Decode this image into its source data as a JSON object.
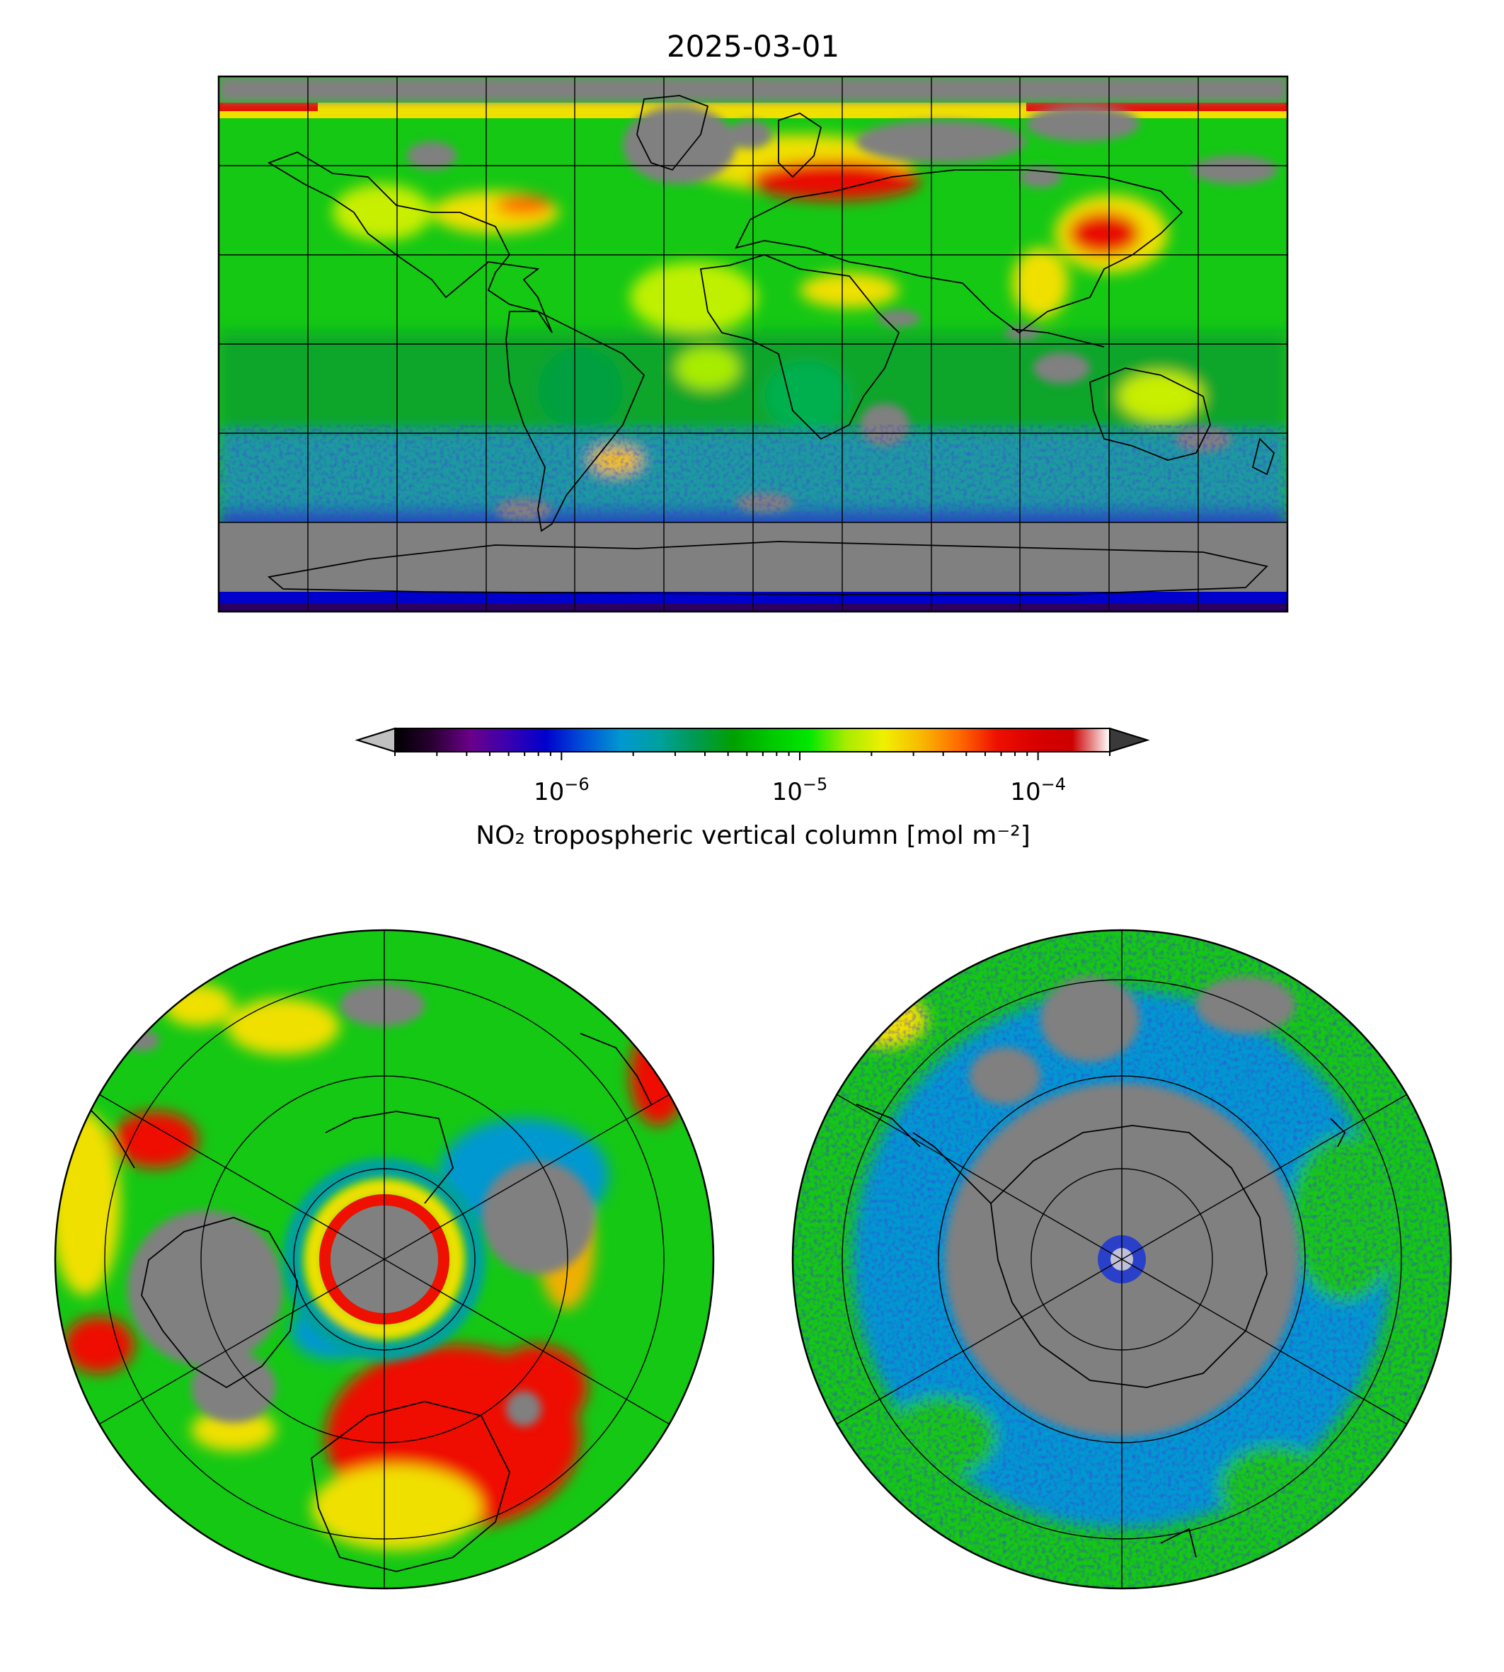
{
  "figure": {
    "title": "2025-03-01"
  },
  "colorbar": {
    "label": "NO₂ tropospheric vertical column [mol m⁻²]",
    "scale": "log",
    "range": [
      2e-07,
      0.0002
    ],
    "extend": "both",
    "ticks": [
      {
        "value": 1e-06,
        "base": "10",
        "exponent": "−6"
      },
      {
        "value": 1e-05,
        "base": "10",
        "exponent": "−5"
      },
      {
        "value": 0.0001,
        "base": "10",
        "exponent": "−4"
      }
    ],
    "colors": {
      "under": "#c0c0c0",
      "over": "#3a3a3a",
      "stops": [
        "#000000",
        "#2a0033",
        "#6a0088",
        "#3a00b0",
        "#0000cc",
        "#0050d8",
        "#0098d0",
        "#00a0a0",
        "#009a50",
        "#00a000",
        "#00c800",
        "#00e800",
        "#a8ec00",
        "#f0f000",
        "#f8b800",
        "#ff6a00",
        "#ee1000",
        "#d80000",
        "#cc0000",
        "#ffffff"
      ]
    }
  },
  "maps": [
    {
      "name": "global-map",
      "projection": "plate-carree"
    },
    {
      "name": "north-polar-map",
      "projection": "north-polar-stereographic"
    },
    {
      "name": "south-polar-map",
      "projection": "south-polar-stereographic"
    }
  ],
  "map_colors": {
    "no_data": "#808080",
    "background_green": "#14c814",
    "coastline": "#000000",
    "gridline": "#000000"
  }
}
